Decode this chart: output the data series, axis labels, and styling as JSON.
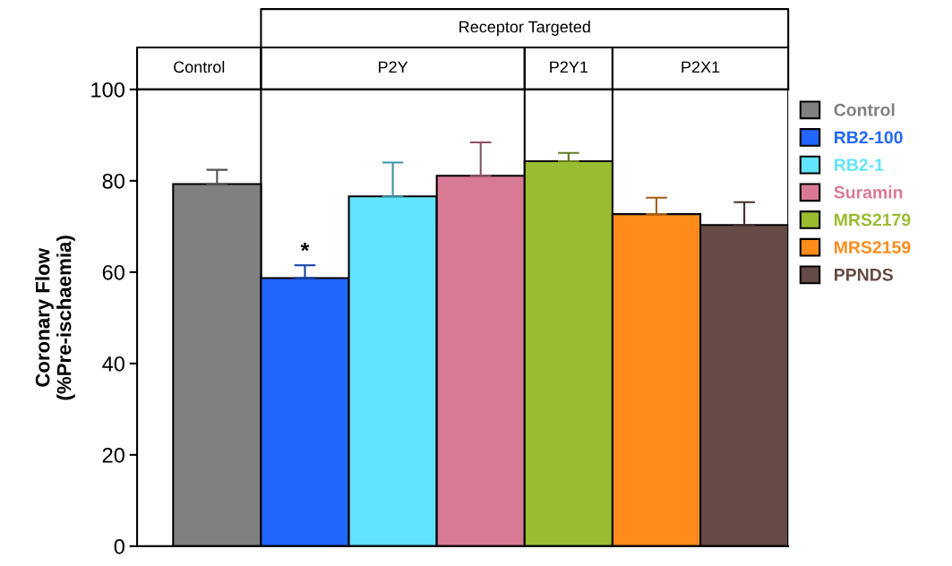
{
  "chart_data": {
    "type": "bar",
    "ylabel": "Coronary Flow\n(%Pre-ischaemia)",
    "categories": [
      null,
      null,
      null,
      null,
      null,
      null,
      null
    ],
    "series": [
      {
        "name": "Control",
        "color": "#808080",
        "values": [
          79.3,
          null,
          null,
          null,
          null,
          null,
          null
        ],
        "errors": [
          [
            79.3,
            82.4
          ],
          null,
          null,
          null,
          null,
          null,
          null
        ]
      },
      {
        "name": "RB2-100",
        "color": "#2166ff",
        "values": [
          null,
          58.7,
          null,
          null,
          null,
          null,
          null
        ],
        "errors": [
          null,
          [
            58.7,
            61.5
          ],
          null,
          null,
          null,
          null,
          null
        ]
      },
      {
        "name": "RB2-1",
        "color": "#62e3ff",
        "values": [
          null,
          null,
          76.6,
          null,
          null,
          null,
          null
        ],
        "errors": [
          null,
          null,
          [
            76.6,
            84.0
          ],
          null,
          null,
          null,
          null
        ]
      },
      {
        "name": "Suramin",
        "color": "#d97a94",
        "values": [
          null,
          null,
          null,
          81.1,
          null,
          null,
          null
        ],
        "errors": [
          null,
          null,
          null,
          [
            81.1,
            88.4
          ],
          null,
          null,
          null
        ]
      },
      {
        "name": "MRS2179",
        "color": "#9abc30",
        "values": [
          null,
          null,
          null,
          null,
          84.3,
          null,
          null
        ],
        "errors": [
          null,
          null,
          null,
          null,
          [
            84.3,
            86.1
          ],
          null,
          null
        ]
      },
      {
        "name": "MRS2159",
        "color": "#ff8c1a",
        "values": [
          null,
          null,
          null,
          null,
          null,
          72.7,
          null
        ],
        "errors": [
          null,
          null,
          null,
          null,
          null,
          [
            72.7,
            76.3
          ],
          null
        ]
      },
      {
        "name": "PPNDS",
        "color": "#654a45",
        "values": [
          null,
          null,
          null,
          null,
          null,
          null,
          70.3
        ],
        "errors": [
          null,
          null,
          null,
          null,
          null,
          null,
          [
            70.3,
            75.3
          ]
        ]
      }
    ],
    "ylim": [
      0,
      100
    ],
    "yticks": [
      0,
      20,
      40,
      60,
      80,
      100
    ],
    "grid": false,
    "legend": "right",
    "annotations": [
      "Receptor Targeted",
      "Control",
      "P2Y",
      "P2Y1",
      "P2X1",
      "*"
    ]
  }
}
